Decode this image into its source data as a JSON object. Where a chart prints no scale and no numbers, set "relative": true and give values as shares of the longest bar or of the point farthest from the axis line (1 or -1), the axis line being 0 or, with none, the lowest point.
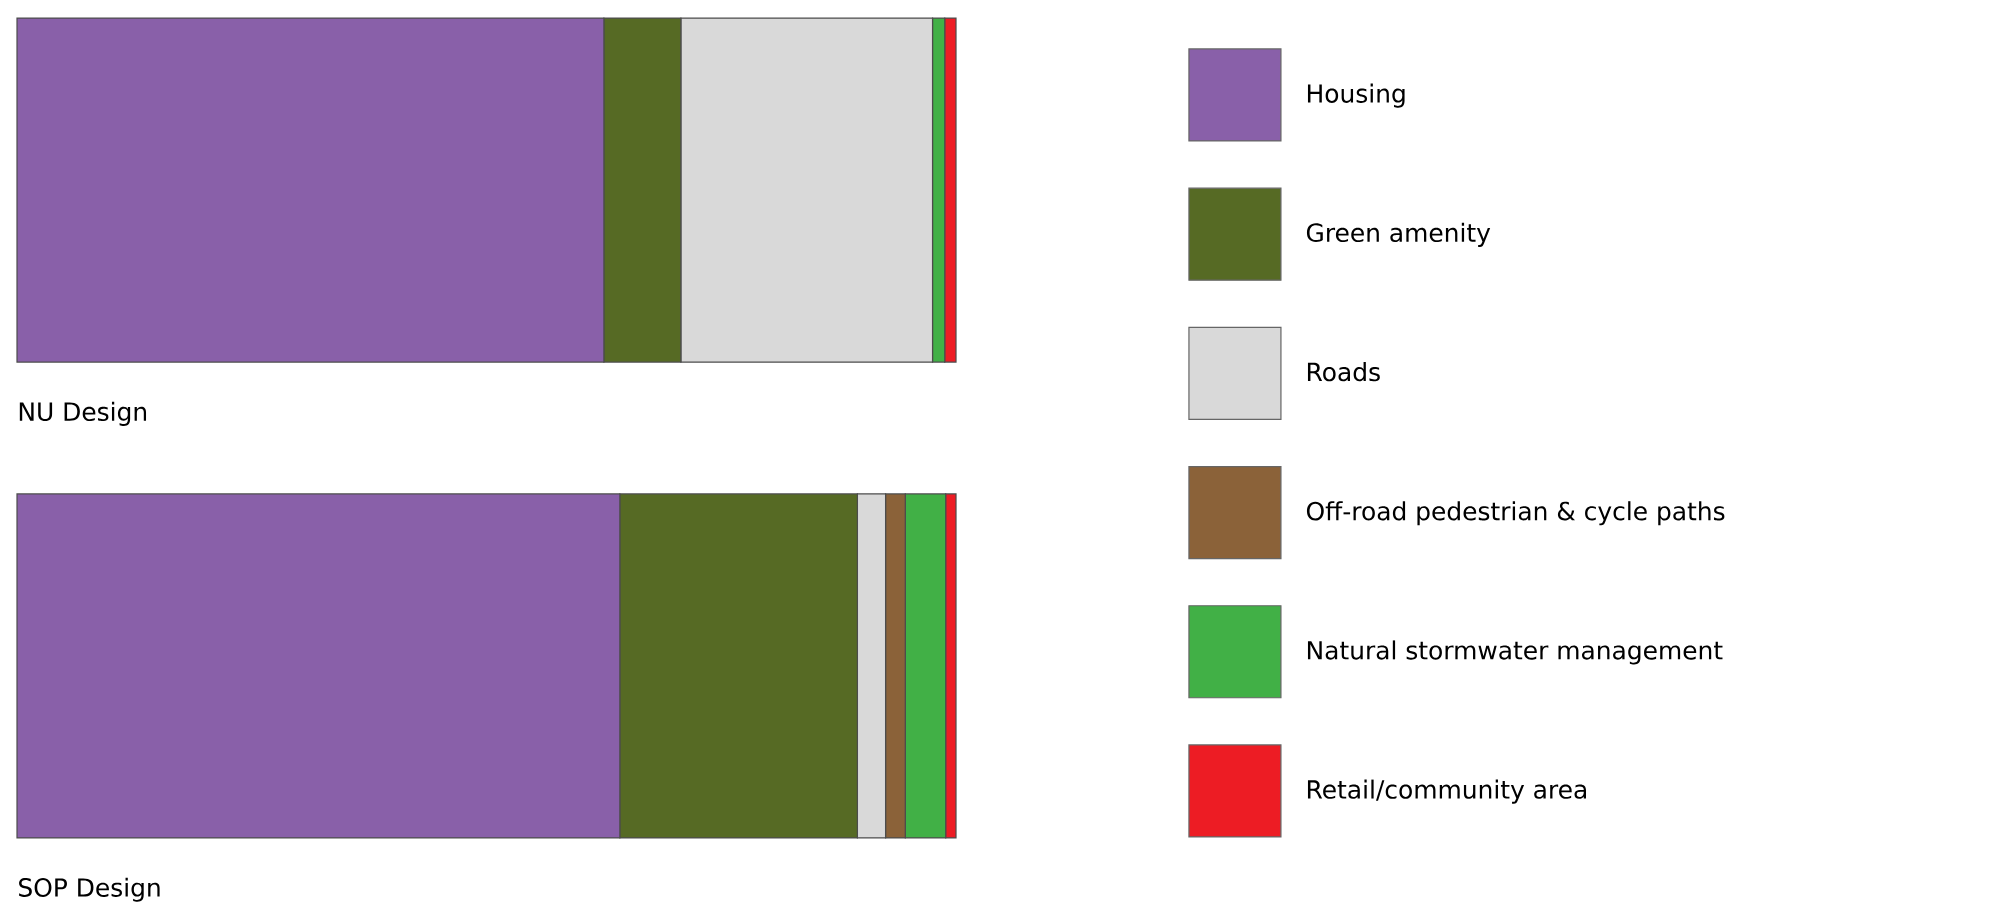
{
  "chart_data": {
    "type": "bar",
    "orientation": "horizontal",
    "stacked": true,
    "relative": true,
    "legend": "right",
    "categories": [
      "NU Design",
      "SOP Design"
    ],
    "series": [
      {
        "name": "Housing",
        "color": "#8960a9",
        "values": [
          0.625,
          0.642
        ]
      },
      {
        "name": "Green amenity",
        "color": "#566a24",
        "values": [
          0.082,
          0.253
        ]
      },
      {
        "name": "Roads",
        "color": "#d9d9d9",
        "values": [
          0.268,
          0.03
        ]
      },
      {
        "name": "Off-road pedestrian & cycle paths",
        "color": "#8b6239",
        "values": [
          0,
          0.021
        ]
      },
      {
        "name": "Natural stormwater management",
        "color": "#41b046",
        "values": [
          0.013,
          0.043
        ]
      },
      {
        "name": "Retail/community area",
        "color": "#ed1c24",
        "values": [
          0.012,
          0.011
        ]
      }
    ]
  }
}
